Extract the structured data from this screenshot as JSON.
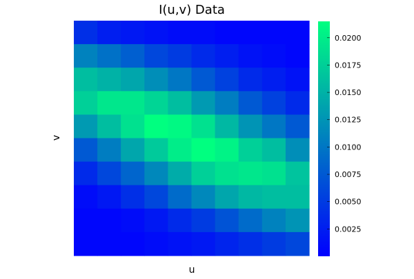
{
  "chart_data": {
    "type": "heatmap",
    "title": "I(u,v) Data",
    "xlabel": "u",
    "ylabel": "v",
    "rows": 10,
    "cols": 10,
    "z_min": 0.0,
    "z_max": 0.0215,
    "colormap": [
      "#0000ff",
      "#00ff80"
    ],
    "colorbar_ticks": [
      0.0025,
      0.005,
      0.0075,
      0.01,
      0.0125,
      0.015,
      0.0175,
      0.02
    ],
    "colorbar_tick_labels": [
      "0.0025",
      "0.0050",
      "0.0075",
      "0.0100",
      "0.0125",
      "0.0150",
      "0.0175",
      "0.0200"
    ],
    "grid": false,
    "values": [
      [
        0.004,
        0.0025,
        0.002,
        0.0015,
        0.001,
        0.001,
        0.0005,
        0.0005,
        0.0005,
        0.0005
      ],
      [
        0.011,
        0.0095,
        0.008,
        0.006,
        0.005,
        0.0035,
        0.0025,
        0.0015,
        0.001,
        0.0005
      ],
      [
        0.016,
        0.015,
        0.014,
        0.012,
        0.01,
        0.0075,
        0.0055,
        0.0035,
        0.0025,
        0.0015
      ],
      [
        0.0175,
        0.0195,
        0.0195,
        0.018,
        0.016,
        0.013,
        0.0105,
        0.0075,
        0.0055,
        0.0035
      ],
      [
        0.013,
        0.016,
        0.019,
        0.0215,
        0.021,
        0.019,
        0.0155,
        0.0125,
        0.01,
        0.0075
      ],
      [
        0.0075,
        0.0105,
        0.014,
        0.017,
        0.02,
        0.0215,
        0.0205,
        0.0175,
        0.016,
        0.012
      ],
      [
        0.0035,
        0.006,
        0.0085,
        0.0115,
        0.0145,
        0.0175,
        0.019,
        0.0195,
        0.019,
        0.0165
      ],
      [
        0.001,
        0.002,
        0.004,
        0.006,
        0.009,
        0.0115,
        0.014,
        0.0155,
        0.016,
        0.016
      ],
      [
        0.0005,
        0.0005,
        0.001,
        0.002,
        0.0035,
        0.005,
        0.007,
        0.009,
        0.011,
        0.0125
      ],
      [
        0.0005,
        0.0005,
        0.0005,
        0.001,
        0.0015,
        0.002,
        0.003,
        0.004,
        0.005,
        0.006
      ]
    ]
  }
}
